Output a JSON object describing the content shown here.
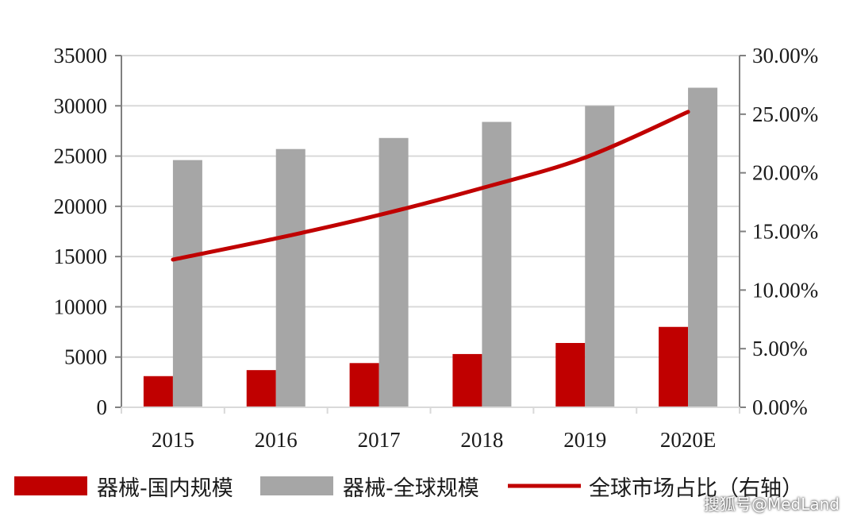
{
  "colors": {
    "domestic": "#c00000",
    "global": "#a6a6a6",
    "share_line": "#c00000",
    "grid": "#d9d9d9",
    "axis": "#808080"
  },
  "chart_data": {
    "type": "bar",
    "categories": [
      "2015",
      "2016",
      "2017",
      "2018",
      "2019",
      "2020E"
    ],
    "series": [
      {
        "name": "器械-国内规模",
        "type": "bar",
        "axis": "left",
        "values": [
          3100,
          3700,
          4400,
          5300,
          6400,
          8000
        ]
      },
      {
        "name": "器械-全球规模",
        "type": "bar",
        "axis": "left",
        "values": [
          24600,
          25700,
          26800,
          28400,
          30000,
          31800
        ]
      },
      {
        "name": "全球市场占比（右轴）",
        "type": "line",
        "axis": "right",
        "values": [
          12.6,
          14.4,
          16.4,
          18.7,
          21.3,
          25.2
        ]
      }
    ],
    "ylim": [
      0,
      35000
    ],
    "yticks": [
      "0",
      "5000",
      "10000",
      "15000",
      "20000",
      "25000",
      "30000",
      "35000"
    ],
    "y2lim": [
      0,
      30
    ],
    "y2ticks": [
      "0.00%",
      "5.00%",
      "10.00%",
      "15.00%",
      "20.00%",
      "25.00%",
      "30.00%"
    ],
    "grid": true,
    "legend_position": "bottom"
  },
  "watermark": "搜狐号@MedLand"
}
